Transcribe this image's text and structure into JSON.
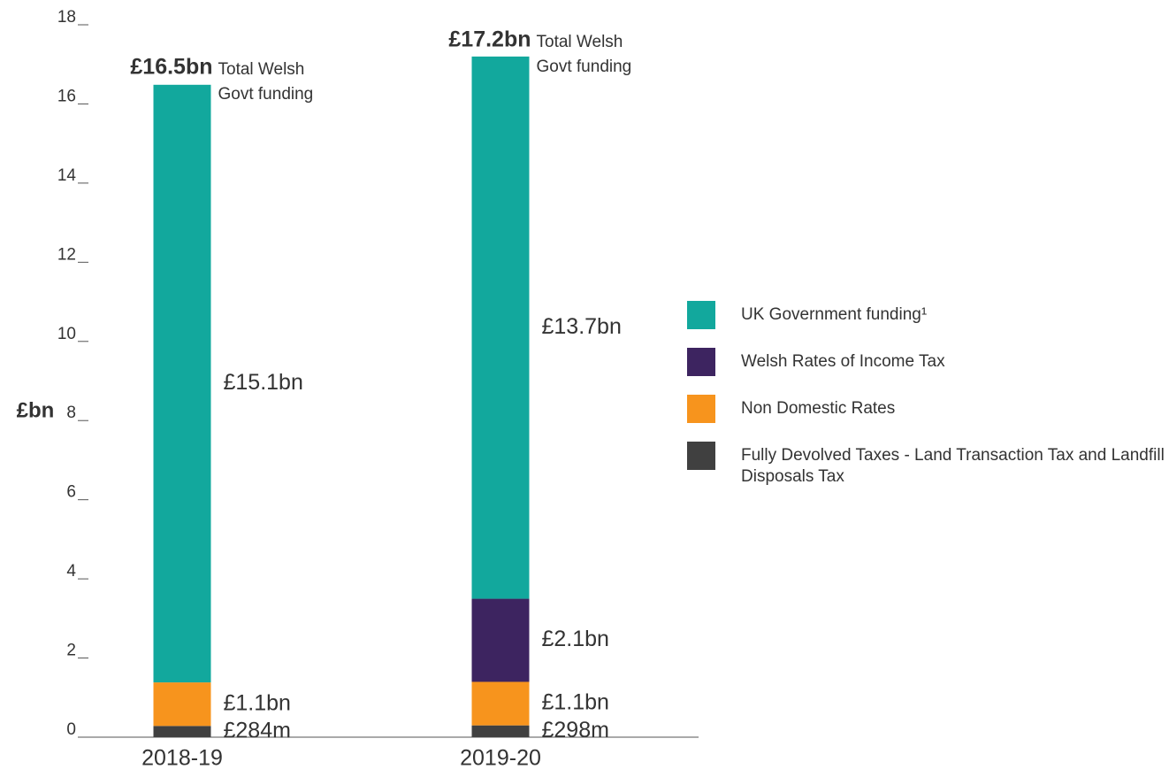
{
  "chart_data": {
    "type": "stacked_bar",
    "y_label": "£bn",
    "categories": [
      "2018-19",
      "2019-20"
    ],
    "series": [
      {
        "name": "Fully Devolved Taxes - Land Transaction Tax and Landfill Disposals Tax",
        "color": "#404040",
        "values": [
          0.284,
          0.298
        ],
        "value_labels": [
          "£284m",
          "£298m"
        ]
      },
      {
        "name": "Non Domestic Rates",
        "color": "#f7941d",
        "values": [
          1.1,
          1.1
        ],
        "value_labels": [
          "£1.1bn",
          "£1.1bn"
        ]
      },
      {
        "name": "Welsh Rates of Income Tax",
        "color": "#3d2460",
        "values": [
          null,
          2.1
        ],
        "value_labels": [
          null,
          "£2.1bn"
        ]
      },
      {
        "name": "UK Government funding¹",
        "color": "#12a89d",
        "values": [
          15.1,
          13.7
        ],
        "value_labels": [
          "£15.1bn",
          "£13.7bn"
        ]
      }
    ],
    "totals": [
      {
        "value": 16.5,
        "label": "£16.5bn",
        "note": [
          "Total Welsh",
          "Govt funding"
        ]
      },
      {
        "value": 17.2,
        "label": "£17.2bn",
        "note": [
          "Total Welsh",
          "Govt funding"
        ]
      }
    ],
    "ylim": [
      0,
      18
    ],
    "yticks": [
      0,
      2,
      4,
      6,
      8,
      10,
      12,
      14,
      16,
      18
    ]
  }
}
